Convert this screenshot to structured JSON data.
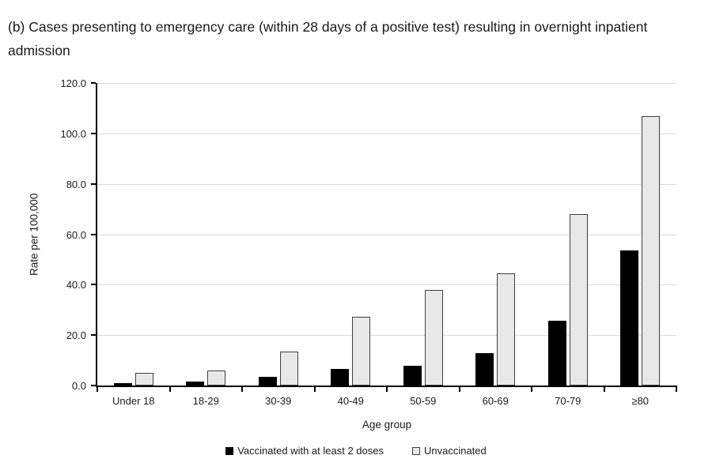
{
  "chart_data": {
    "type": "bar",
    "title": "(b) Cases presenting to emergency care (within 28 days of a positive test) resulting in overnight inpatient admission",
    "categories": [
      "Under 18",
      "18-29",
      "30-39",
      "40-49",
      "50-59",
      "60-69",
      "70-79",
      "≥80"
    ],
    "series": [
      {
        "name": "Vaccinated with at least 2 doses",
        "fill": "#000000",
        "border": "#000000",
        "values": [
          1.1,
          1.5,
          3.3,
          6.6,
          7.9,
          13.0,
          25.6,
          53.7
        ]
      },
      {
        "name": "Unvaccinated",
        "fill": "#e8e8e8",
        "border": "#3f3f3f",
        "values": [
          4.9,
          5.9,
          13.4,
          27.4,
          37.8,
          44.6,
          68.0,
          106.7
        ]
      }
    ],
    "xlabel": "Age group",
    "ylabel": "Rate per 100,000",
    "ylim": [
      0,
      120
    ],
    "ytick_step": 20,
    "ytick_labels": [
      "0.0",
      "20.0",
      "40.0",
      "60.0",
      "80.0",
      "100.0",
      "120.0"
    ],
    "grid": "horizontal",
    "legend_position": "bottom",
    "colors": {
      "gridline": "#d9d9d9",
      "axis": "#000000",
      "text": "#1a1a1a",
      "background": "#ffffff"
    }
  }
}
